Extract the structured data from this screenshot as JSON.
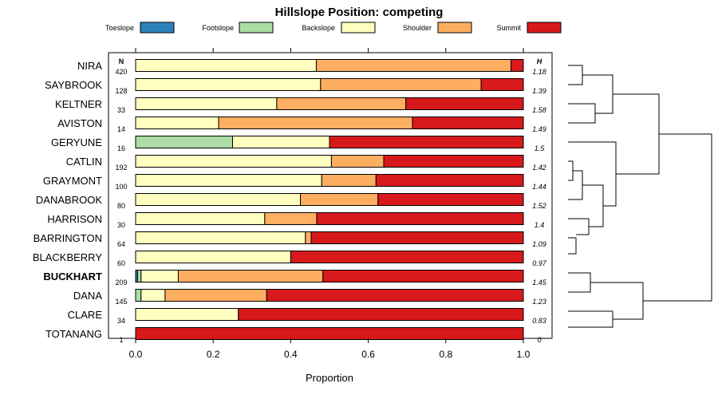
{
  "chart_data": {
    "type": "bar",
    "subtype": "stacked-horizontal-proportion",
    "title": "Hillslope Position: competing",
    "xlabel": "Proportion",
    "xlim": [
      0,
      1
    ],
    "xticks": [
      "0.0",
      "0.2",
      "0.4",
      "0.6",
      "0.8",
      "1.0"
    ],
    "n_header": "N",
    "h_header": "H",
    "legend": [
      {
        "name": "Toeslope",
        "color": "#2b83ba"
      },
      {
        "name": "Footslope",
        "color": "#abdda4"
      },
      {
        "name": "Backslope",
        "color": "#ffffbf"
      },
      {
        "name": "Shoulder",
        "color": "#fdae61"
      },
      {
        "name": "Summit",
        "color": "#d7191c"
      }
    ],
    "rows": [
      {
        "name": "NIRA",
        "n": "420",
        "h": "1.18",
        "bold": false,
        "values": [
          0,
          0,
          0.466,
          0.502,
          0.032
        ]
      },
      {
        "name": "SAYBROOK",
        "n": "128",
        "h": "1.39",
        "bold": false,
        "values": [
          0,
          0,
          0.477,
          0.414,
          0.109
        ]
      },
      {
        "name": "KELTNER",
        "n": "33",
        "h": "1.58",
        "bold": false,
        "values": [
          0,
          0,
          0.364,
          0.333,
          0.303
        ]
      },
      {
        "name": "AVISTON",
        "n": "14",
        "h": "1.49",
        "bold": false,
        "values": [
          0,
          0,
          0.214,
          0.5,
          0.286
        ]
      },
      {
        "name": "GERYUNE",
        "n": "16",
        "h": "1.5",
        "bold": false,
        "values": [
          0,
          0.25,
          0.25,
          0,
          0.5
        ]
      },
      {
        "name": "CATLIN",
        "n": "192",
        "h": "1.42",
        "bold": false,
        "values": [
          0,
          0,
          0.505,
          0.135,
          0.36
        ]
      },
      {
        "name": "GRAYMONT",
        "n": "100",
        "h": "1.44",
        "bold": false,
        "values": [
          0,
          0,
          0.48,
          0.14,
          0.38
        ]
      },
      {
        "name": "DANABROOK",
        "n": "80",
        "h": "1.52",
        "bold": false,
        "values": [
          0,
          0,
          0.425,
          0.2,
          0.375
        ]
      },
      {
        "name": "HARRISON",
        "n": "30",
        "h": "1.4",
        "bold": false,
        "values": [
          0,
          0,
          0.333,
          0.134,
          0.533
        ]
      },
      {
        "name": "BARRINGTON",
        "n": "64",
        "h": "1.09",
        "bold": false,
        "values": [
          0,
          0,
          0.438,
          0.015,
          0.547
        ]
      },
      {
        "name": "BLACKBERRY",
        "n": "60",
        "h": "0.97",
        "bold": false,
        "values": [
          0,
          0,
          0.4,
          0,
          0.6
        ]
      },
      {
        "name": "BUCKHART",
        "n": "209",
        "h": "1.45",
        "bold": true,
        "values": [
          0.005,
          0.009,
          0.096,
          0.373,
          0.517
        ]
      },
      {
        "name": "DANA",
        "n": "145",
        "h": "1.23",
        "bold": false,
        "values": [
          0,
          0.014,
          0.062,
          0.262,
          0.662
        ]
      },
      {
        "name": "CLARE",
        "n": "34",
        "h": "0.83",
        "bold": false,
        "values": [
          0,
          0,
          0.265,
          0,
          0.735
        ]
      },
      {
        "name": "TOTANANG",
        "n": "1",
        "h": "0",
        "bold": false,
        "values": [
          0,
          0,
          0,
          0,
          1
        ]
      }
    ]
  }
}
